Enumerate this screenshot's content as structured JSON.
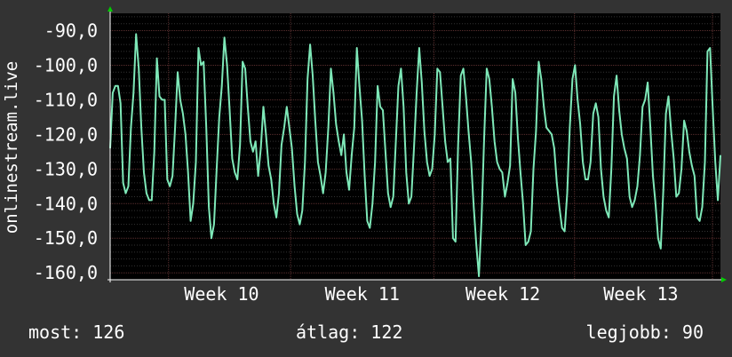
{
  "colors": {
    "background": "#333333",
    "plot_background": "#000000",
    "major_grid": "#5a2f2f",
    "minor_grid": "#333333",
    "line": "#7ee8b8",
    "axis_arrow": "#00cc00",
    "text": "#ffffff"
  },
  "stats": {
    "current": "most: 126",
    "average": "átlag: 122",
    "best": "legjobb: 90"
  },
  "chart_data": {
    "type": "line",
    "title": "",
    "ylabel": "onlinestream.live",
    "xlabel": "",
    "xlim": [
      0,
      230
    ],
    "ylim": [
      -162,
      -85
    ],
    "yticks": [
      -90,
      -100,
      -110,
      -120,
      -130,
      -140,
      -150,
      -160
    ],
    "ytick_labels": [
      "-90,0",
      "-100,0",
      "-110,0",
      "-120,0",
      "-130,0",
      "-140,0",
      "-150,0",
      "-160,0"
    ],
    "xticks": [
      {
        "x": 42,
        "label": "Week 10"
      },
      {
        "x": 95,
        "label": "Week 11"
      },
      {
        "x": 148,
        "label": "Week 12"
      },
      {
        "x": 200,
        "label": "Week 13"
      }
    ],
    "major_x_grid": [
      22,
      68,
      122,
      175,
      227
    ],
    "grid": true,
    "series": [
      {
        "values": [
          -124,
          -108,
          -106,
          -106,
          -111,
          -134,
          -137,
          -135,
          -118,
          -108,
          -91,
          -101,
          -118,
          -131,
          -137,
          -139,
          -139,
          -125,
          -98,
          -109,
          -110,
          -110,
          -133,
          -135,
          -132,
          -118,
          -102,
          -110,
          -114,
          -120,
          -131,
          -145,
          -140,
          -128,
          -95,
          -100,
          -99,
          -118,
          -141,
          -150,
          -146,
          -130,
          -115,
          -106,
          -92,
          -100,
          -113,
          -127,
          -131,
          -133,
          -123,
          -99,
          -101,
          -112,
          -122,
          -125,
          -122,
          -132,
          -124,
          -112,
          -120,
          -129,
          -133,
          -140,
          -144,
          -137,
          -123,
          -118,
          -112,
          -118,
          -124,
          -135,
          -143,
          -146,
          -142,
          -128,
          -104,
          -94,
          -103,
          -116,
          -128,
          -132,
          -137,
          -131,
          -118,
          -101,
          -108,
          -117,
          -122,
          -126,
          -120,
          -131,
          -136,
          -126,
          -118,
          -95,
          -106,
          -116,
          -132,
          -145,
          -147,
          -140,
          -128,
          -106,
          -112,
          -113,
          -125,
          -137,
          -141,
          -138,
          -122,
          -106,
          -101,
          -112,
          -131,
          -140,
          -138,
          -124,
          -108,
          -95,
          -105,
          -119,
          -128,
          -132,
          -130,
          -120,
          -101,
          -102,
          -112,
          -122,
          -128,
          -127,
          -150,
          -151,
          -123,
          -103,
          -101,
          -109,
          -119,
          -128,
          -141,
          -152,
          -161,
          -145,
          -121,
          -101,
          -104,
          -112,
          -122,
          -128,
          -130,
          -131,
          -138,
          -134,
          -129,
          -104,
          -108,
          -121,
          -131,
          -140,
          -152,
          -151,
          -148,
          -130,
          -119,
          -99,
          -104,
          -112,
          -118,
          -119,
          -120,
          -124,
          -134,
          -141,
          -147,
          -148,
          -137,
          -118,
          -104,
          -100,
          -110,
          -117,
          -128,
          -133,
          -133,
          -128,
          -114,
          -111,
          -115,
          -130,
          -138,
          -142,
          -144,
          -130,
          -109,
          -103,
          -113,
          -120,
          -124,
          -127,
          -138,
          -141,
          -139,
          -135,
          -126,
          -112,
          -110,
          -105,
          -118,
          -132,
          -140,
          -150,
          -153,
          -136,
          -114,
          -109,
          -119,
          -127,
          -138,
          -137,
          -130,
          -116,
          -119,
          -125,
          -129,
          -132,
          -144,
          -145,
          -141,
          -128,
          -96,
          -95,
          -112,
          -128,
          -139,
          -126
        ]
      }
    ]
  }
}
